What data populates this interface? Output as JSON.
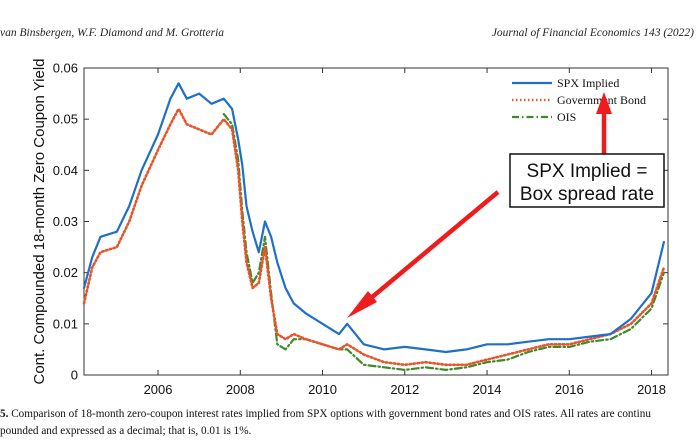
{
  "header": {
    "left": "van Binsbergen, W.F. Diamond and M. Grotteria",
    "right": "Journal of Financial Economics 143 (2022)"
  },
  "caption": {
    "fig_num": "5.",
    "line1": "Comparison of 18-month zero-coupon interest rates implied from SPX options with government bond rates and OIS rates. All rates are continu",
    "line2": "pounded and expressed as a decimal; that is, 0.01 is 1%."
  },
  "colors": {
    "spx": "#1f6fc9",
    "gov": "#e8552a",
    "ois": "#3e8a2a",
    "arrow": "#ee1c1c"
  },
  "chart_data": {
    "type": "line",
    "ylabel": "Cont. Compounded 18-month Zero Coupon Yield",
    "xlabel": "",
    "xlim": [
      2004.2,
      2018.4
    ],
    "ylim": [
      0,
      0.06
    ],
    "xticks": [
      "2006",
      "2008",
      "2010",
      "2012",
      "2014",
      "2016",
      "2018"
    ],
    "yticks": [
      "0",
      "0.01",
      "0.02",
      "0.03",
      "0.04",
      "0.05",
      "0.06"
    ],
    "grid": false,
    "legend_position": "top-right",
    "series": [
      {
        "name": "SPX Implied",
        "style": "solid",
        "x": [
          2004.2,
          2004.4,
          2004.6,
          2005.0,
          2005.3,
          2005.6,
          2006.0,
          2006.3,
          2006.5,
          2006.7,
          2007.0,
          2007.3,
          2007.6,
          2007.8,
          2007.95,
          2008.05,
          2008.15,
          2008.3,
          2008.45,
          2008.6,
          2008.75,
          2008.9,
          2009.1,
          2009.3,
          2009.6,
          2010.0,
          2010.4,
          2010.6,
          2011.0,
          2011.5,
          2012.0,
          2012.5,
          2013.0,
          2013.5,
          2014.0,
          2014.5,
          2015.0,
          2015.5,
          2016.0,
          2016.5,
          2017.0,
          2017.5,
          2018.0,
          2018.3
        ],
        "y": [
          0.017,
          0.023,
          0.027,
          0.028,
          0.033,
          0.04,
          0.047,
          0.054,
          0.057,
          0.054,
          0.055,
          0.053,
          0.054,
          0.052,
          0.046,
          0.041,
          0.033,
          0.028,
          0.024,
          0.03,
          0.027,
          0.022,
          0.017,
          0.014,
          0.012,
          0.01,
          0.008,
          0.01,
          0.006,
          0.005,
          0.0055,
          0.005,
          0.0045,
          0.005,
          0.006,
          0.006,
          0.0065,
          0.007,
          0.007,
          0.0075,
          0.008,
          0.011,
          0.016,
          0.026
        ]
      },
      {
        "name": "Government Bond",
        "style": "dotted",
        "x": [
          2004.2,
          2004.4,
          2004.6,
          2005.0,
          2005.3,
          2005.6,
          2006.0,
          2006.3,
          2006.5,
          2006.7,
          2007.0,
          2007.3,
          2007.6,
          2007.8,
          2007.95,
          2008.05,
          2008.15,
          2008.3,
          2008.45,
          2008.6,
          2008.75,
          2008.9,
          2009.1,
          2009.3,
          2009.6,
          2010.0,
          2010.4,
          2010.6,
          2011.0,
          2011.5,
          2012.0,
          2012.5,
          2013.0,
          2013.5,
          2014.0,
          2014.5,
          2015.0,
          2015.5,
          2016.0,
          2016.5,
          2017.0,
          2017.5,
          2018.0,
          2018.3
        ],
        "y": [
          0.014,
          0.021,
          0.024,
          0.025,
          0.03,
          0.037,
          0.044,
          0.049,
          0.052,
          0.049,
          0.048,
          0.047,
          0.05,
          0.048,
          0.04,
          0.03,
          0.022,
          0.017,
          0.018,
          0.025,
          0.015,
          0.008,
          0.007,
          0.008,
          0.007,
          0.006,
          0.005,
          0.006,
          0.004,
          0.0025,
          0.002,
          0.0025,
          0.002,
          0.002,
          0.003,
          0.004,
          0.005,
          0.006,
          0.006,
          0.007,
          0.008,
          0.01,
          0.014,
          0.021
        ]
      },
      {
        "name": "OIS",
        "style": "dashdot",
        "x": [
          2007.6,
          2007.8,
          2007.95,
          2008.05,
          2008.15,
          2008.3,
          2008.45,
          2008.6,
          2008.75,
          2008.9,
          2009.1,
          2009.3,
          2009.6,
          2010.0,
          2010.4,
          2010.6,
          2011.0,
          2011.5,
          2012.0,
          2012.5,
          2013.0,
          2013.5,
          2014.0,
          2014.5,
          2015.0,
          2015.5,
          2016.0,
          2016.5,
          2017.0,
          2017.5,
          2018.0,
          2018.3
        ],
        "y": [
          0.051,
          0.049,
          0.042,
          0.032,
          0.024,
          0.018,
          0.02,
          0.027,
          0.016,
          0.006,
          0.005,
          0.007,
          0.007,
          0.006,
          0.005,
          0.005,
          0.002,
          0.0015,
          0.001,
          0.0015,
          0.001,
          0.0015,
          0.0025,
          0.003,
          0.0045,
          0.0055,
          0.0055,
          0.0065,
          0.007,
          0.009,
          0.013,
          0.02
        ]
      }
    ],
    "annotations": [
      {
        "text_line1": "SPX Implied =",
        "text_line2": "Box spread rate"
      }
    ]
  }
}
